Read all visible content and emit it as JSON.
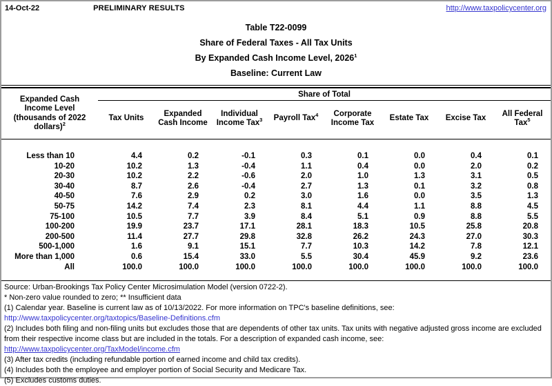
{
  "colors": {
    "link": "#3232cf",
    "outer_border": "#9c9c9c",
    "rule": "#000000"
  },
  "header_strip": {
    "date": "14-Oct-22",
    "status": "PRELIMINARY RESULTS",
    "site_url": "http://www.taxpolicycenter.org"
  },
  "title": {
    "line1": "Table T22-0099",
    "line2": "Share of Federal Taxes - All Tax Units",
    "line3": "By Expanded Cash Income Level, 2026",
    "line3_sup": "1",
    "line4": "Baseline: Current Law"
  },
  "table": {
    "span_header": "Share of Total",
    "row_header": {
      "lines": [
        "Expanded Cash",
        "Income Level",
        "(thousands of 2022",
        "dollars)"
      ],
      "sup": "2"
    },
    "columns": [
      {
        "label": "Tax Units",
        "sup": ""
      },
      {
        "label": "Expanded Cash Income",
        "sup": ""
      },
      {
        "label": "Individual Income Tax",
        "sup": "3"
      },
      {
        "label": "Payroll Tax",
        "sup": "4"
      },
      {
        "label": "Corporate Income Tax",
        "sup": ""
      },
      {
        "label": "Estate Tax",
        "sup": ""
      },
      {
        "label": "Excise Tax",
        "sup": ""
      },
      {
        "label": "All Federal Tax",
        "sup": "5"
      }
    ],
    "rows": [
      {
        "label": "Less than 10",
        "values": [
          "4.4",
          "0.2",
          "-0.1",
          "0.3",
          "0.1",
          "0.0",
          "0.4",
          "0.1"
        ]
      },
      {
        "label": "10-20",
        "values": [
          "10.2",
          "1.3",
          "-0.4",
          "1.1",
          "0.4",
          "0.0",
          "2.0",
          "0.2"
        ]
      },
      {
        "label": "20-30",
        "values": [
          "10.2",
          "2.2",
          "-0.6",
          "2.0",
          "1.0",
          "1.3",
          "3.1",
          "0.5"
        ]
      },
      {
        "label": "30-40",
        "values": [
          "8.7",
          "2.6",
          "-0.4",
          "2.7",
          "1.3",
          "0.1",
          "3.2",
          "0.8"
        ]
      },
      {
        "label": "40-50",
        "values": [
          "7.6",
          "2.9",
          "0.2",
          "3.0",
          "1.6",
          "0.0",
          "3.5",
          "1.3"
        ]
      },
      {
        "label": "50-75",
        "values": [
          "14.2",
          "7.4",
          "2.3",
          "8.1",
          "4.4",
          "1.1",
          "8.8",
          "4.5"
        ]
      },
      {
        "label": "75-100",
        "values": [
          "10.5",
          "7.7",
          "3.9",
          "8.4",
          "5.1",
          "0.9",
          "8.8",
          "5.5"
        ]
      },
      {
        "label": "100-200",
        "values": [
          "19.9",
          "23.7",
          "17.1",
          "28.1",
          "18.3",
          "10.5",
          "25.8",
          "20.8"
        ]
      },
      {
        "label": "200-500",
        "values": [
          "11.4",
          "27.7",
          "29.8",
          "32.8",
          "26.2",
          "24.3",
          "27.0",
          "30.3"
        ]
      },
      {
        "label": "500-1,000",
        "values": [
          "1.6",
          "9.1",
          "15.1",
          "7.7",
          "10.3",
          "14.2",
          "7.8",
          "12.1"
        ]
      },
      {
        "label": "More than 1,000",
        "values": [
          "0.6",
          "15.4",
          "33.0",
          "5.5",
          "30.4",
          "45.9",
          "9.2",
          "23.6"
        ]
      },
      {
        "label": "All",
        "values": [
          "100.0",
          "100.0",
          "100.0",
          "100.0",
          "100.0",
          "100.0",
          "100.0",
          "100.0"
        ]
      }
    ]
  },
  "footer": {
    "lines": [
      {
        "type": "text",
        "text": "Source: Urban-Brookings Tax Policy Center Microsimulation Model (version 0722-2)."
      },
      {
        "type": "text",
        "text": "* Non-zero value rounded to zero; ** Insufficient data"
      },
      {
        "type": "text",
        "text": "(1) Calendar year. Baseline is current law as of 10/13/2022. For more information on TPC's baseline definitions, see:"
      },
      {
        "type": "link",
        "underline": false,
        "text": "http://www.taxpolicycenter.org/taxtopics/Baseline-Definitions.cfm"
      },
      {
        "type": "text",
        "text": "(2) Includes both filing and non-filing units but excludes those that are dependents of other tax units. Tax units with negative adjusted gross income are excluded from their respective income class but are included in the totals. For a description of expanded cash income, see:"
      },
      {
        "type": "link",
        "underline": true,
        "text": "http://www.taxpolicycenter.org/TaxModel/income.cfm"
      },
      {
        "type": "text",
        "text": "(3) After tax credits (including refundable portion of earned income and child tax credits)."
      },
      {
        "type": "text",
        "text": "(4) Includes both the employee and employer portion of Social Security and Medicare Tax."
      },
      {
        "type": "text",
        "text": "(5) Excludes customs duties."
      }
    ]
  }
}
